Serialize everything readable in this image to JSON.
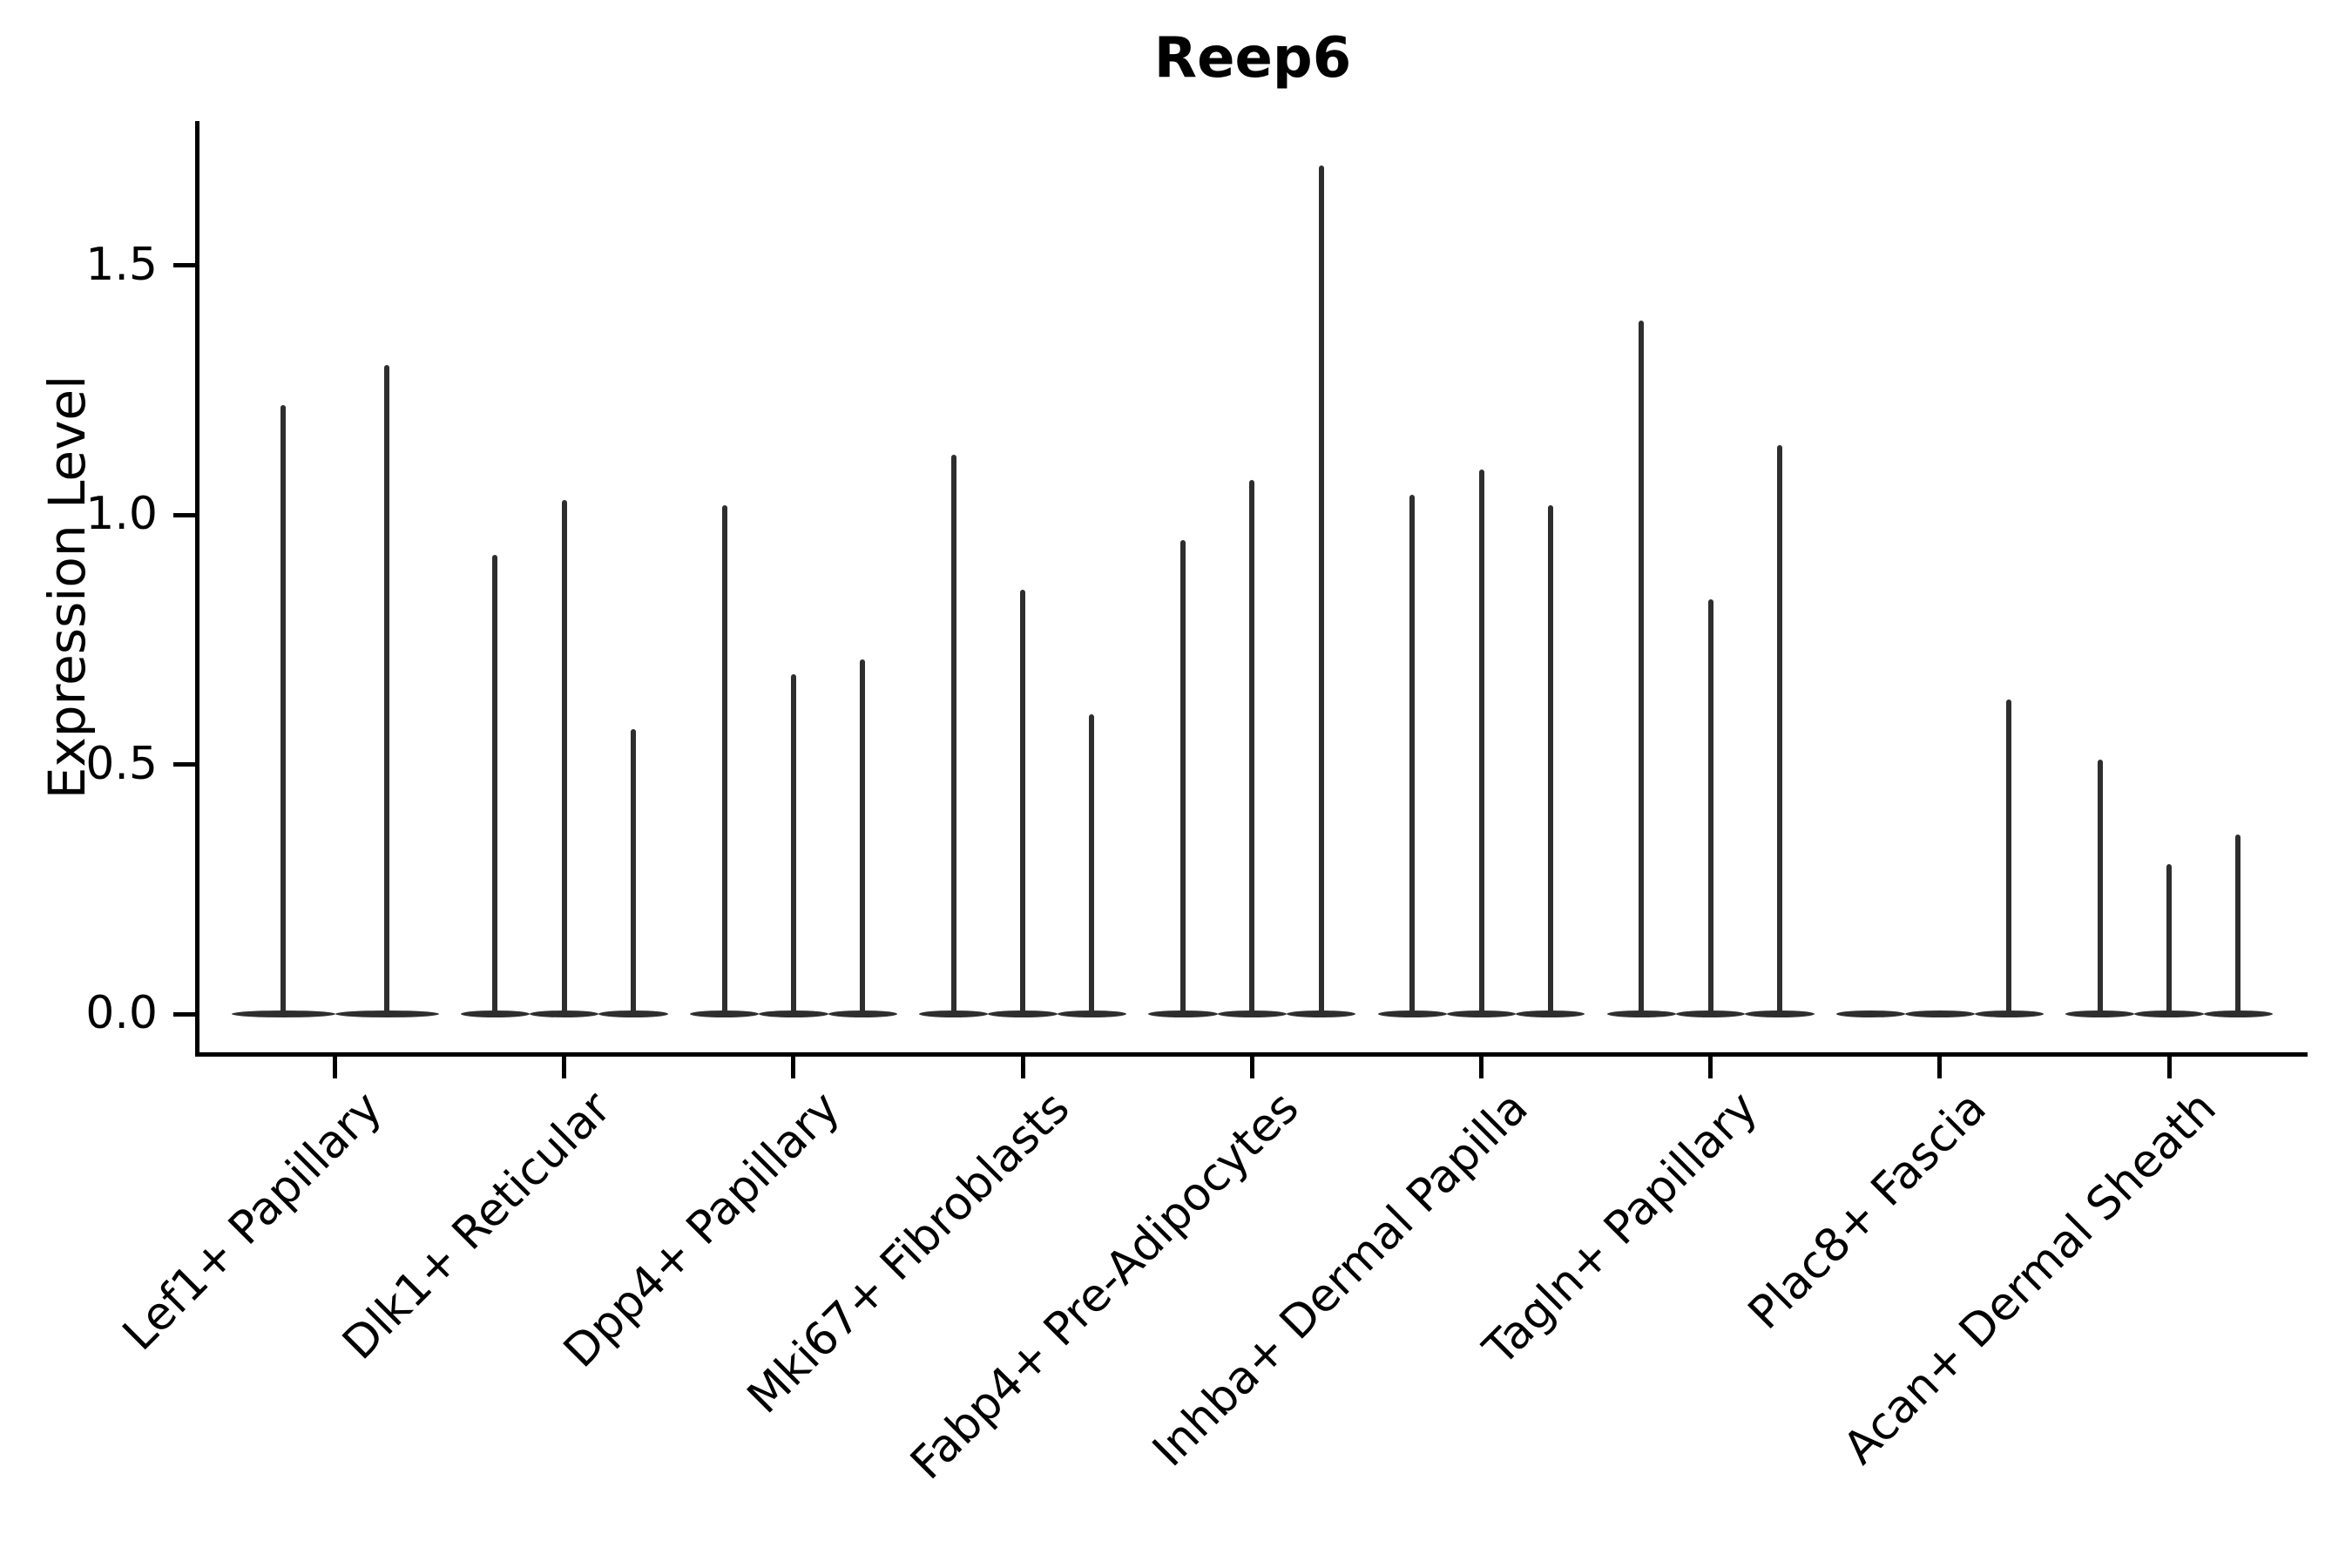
{
  "title": "Reep6",
  "chart_data": {
    "type": "violin",
    "title": "Reep6",
    "ylabel": "Expression Level",
    "xlabel": "",
    "ylim": [
      -0.08,
      1.79
    ],
    "yticks": [
      0.0,
      0.5,
      1.0,
      1.5
    ],
    "ytick_labels": [
      "0.0",
      "0.5",
      "1.0",
      "1.5"
    ],
    "grid": false,
    "legend_position": "none",
    "categories": [
      "Lef1+ Papillary",
      "Dlk1+ Reticular",
      "Dpp4+ Papillary",
      "Mki67+ Fibroblasts",
      "Fabp4+ Pre-Adipocytes",
      "Inhba+ Dermal Papilla",
      "Tagln+ Papillary",
      "Plac8+ Fascia",
      "Acan+ Dermal Sheath"
    ],
    "groups": [
      {
        "category": "Lef1+ Papillary",
        "violin_max": [
          1.22,
          1.3
        ]
      },
      {
        "category": "Dlk1+ Reticular",
        "violin_max": [
          0.92,
          1.03,
          0.57
        ]
      },
      {
        "category": "Dpp4+ Papillary",
        "violin_max": [
          1.02,
          0.68,
          0.71
        ]
      },
      {
        "category": "Mki67+ Fibroblasts",
        "violin_max": [
          1.12,
          0.85,
          0.6
        ]
      },
      {
        "category": "Fabp4+ Pre-Adipocytes",
        "violin_max": [
          0.95,
          1.07,
          1.7
        ]
      },
      {
        "category": "Inhba+ Dermal Papilla",
        "violin_max": [
          1.04,
          1.09,
          1.02
        ]
      },
      {
        "category": "Tagln+ Papillary",
        "violin_max": [
          1.39,
          0.83,
          1.14
        ]
      },
      {
        "category": "Plac8+ Fascia",
        "violin_max": [
          0.0,
          0.0,
          0.63
        ]
      },
      {
        "category": "Acan+ Dermal Sheath",
        "violin_max": [
          0.51,
          0.3,
          0.36
        ]
      }
    ],
    "colors": {
      "violin": "#2e2e2e",
      "axis": "#000000",
      "text": "#000000",
      "background": "#ffffff"
    }
  }
}
